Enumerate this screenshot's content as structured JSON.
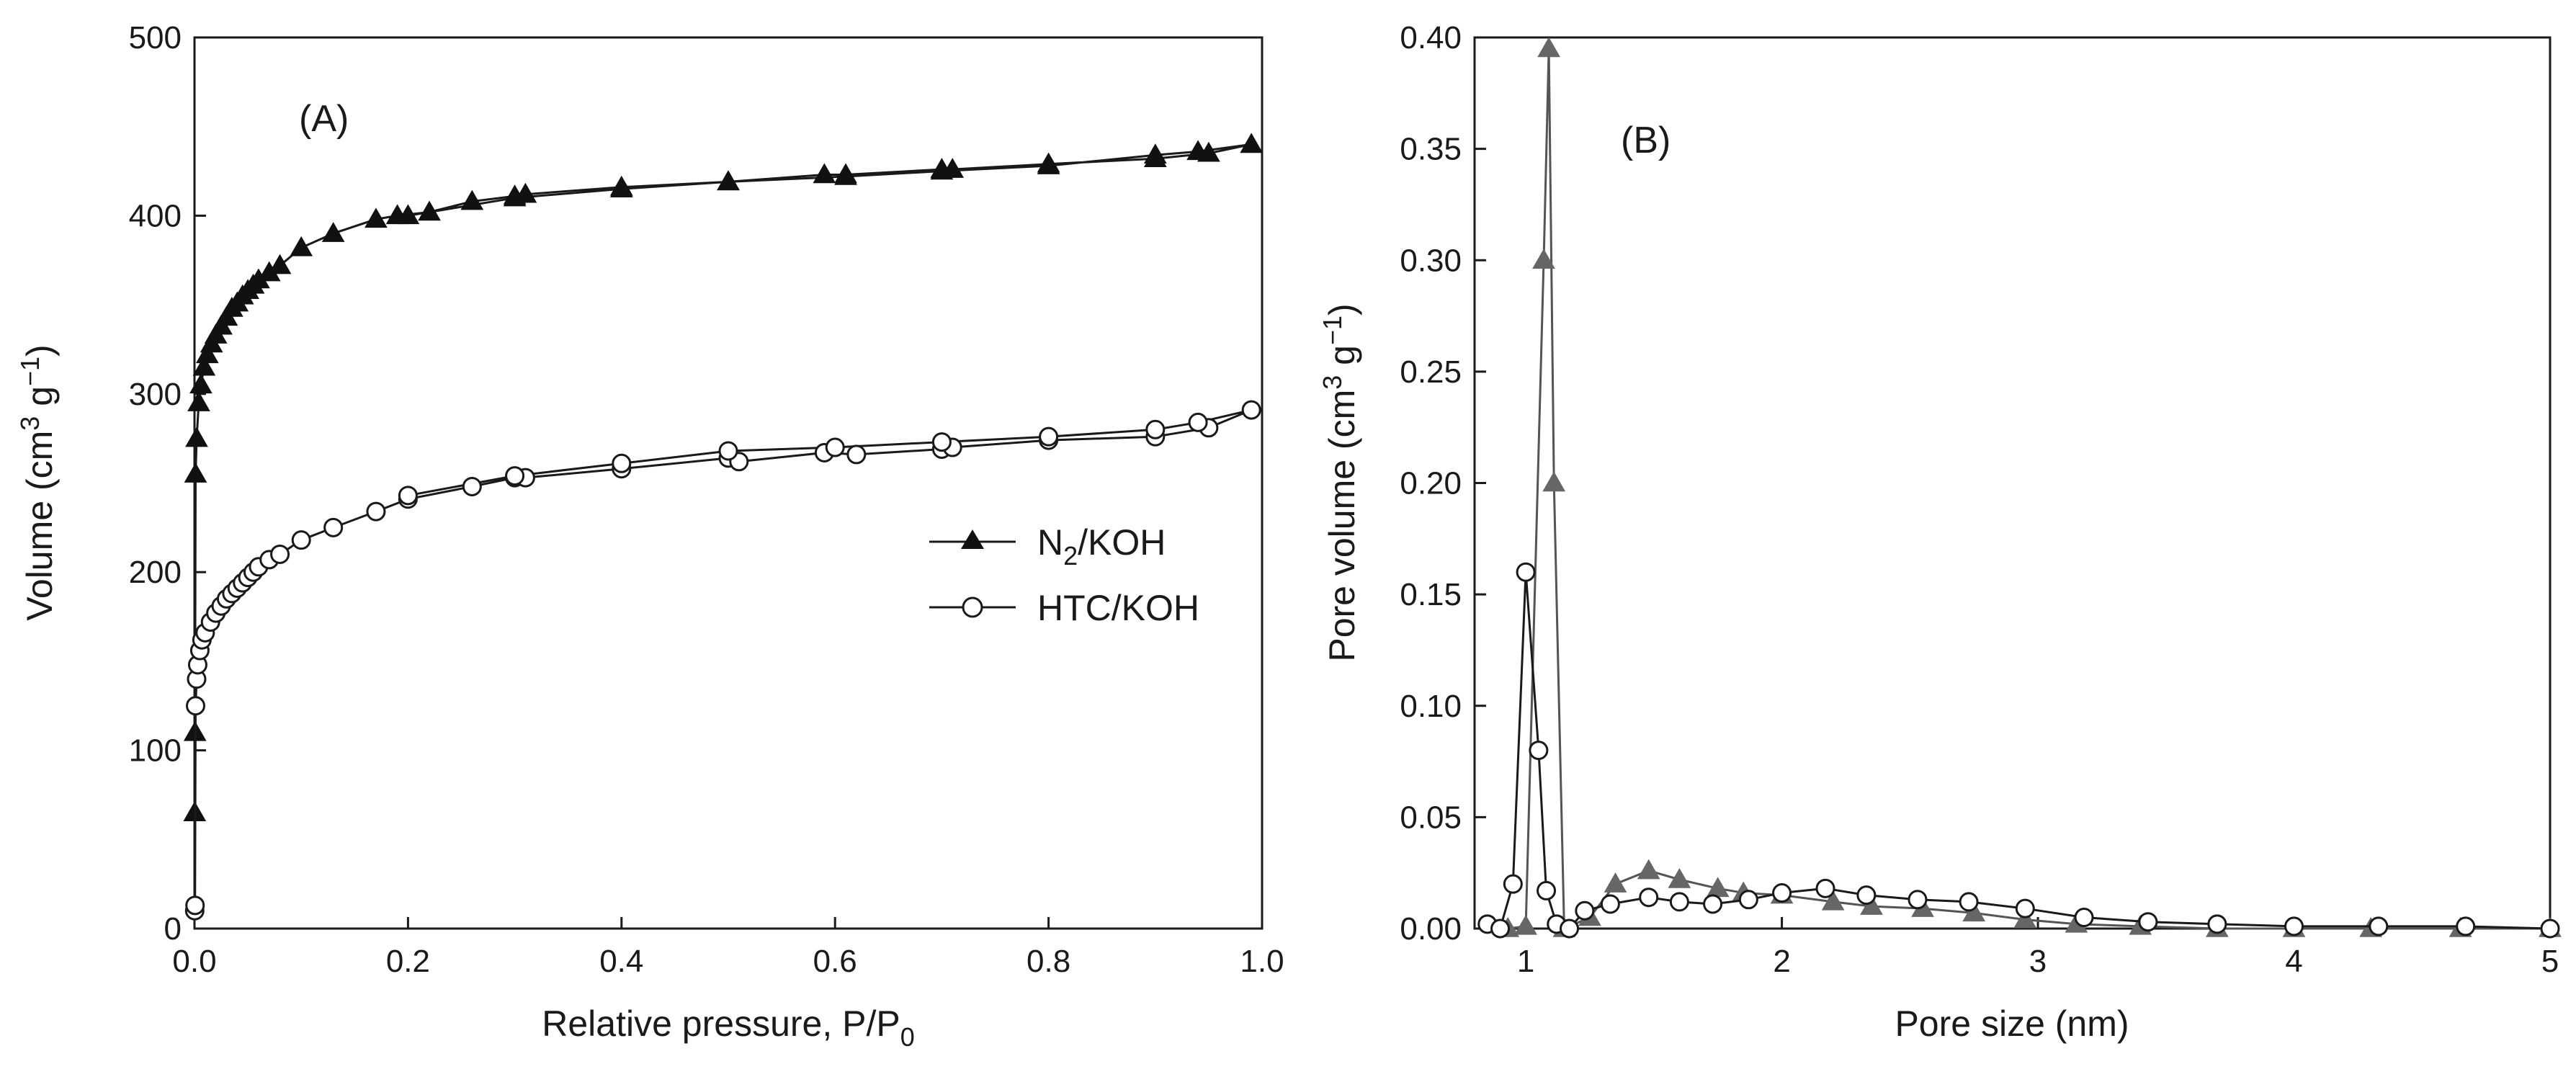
{
  "chart_data": [
    {
      "id": "A",
      "type": "line",
      "panel_label": "(A)",
      "xlabel_main": "Relative pressure, P/P",
      "xlabel_sub": "0",
      "ylabel_main": "Volume (cm",
      "ylabel_sup1": "3",
      "ylabel_mid": " g",
      "ylabel_sup2": "−1",
      "ylabel_end": ")",
      "xlim": [
        0,
        1.0
      ],
      "ylim": [
        0,
        500
      ],
      "xticks": [
        "0.0",
        "0.2",
        "0.4",
        "0.6",
        "0.8",
        "1.0"
      ],
      "yticks": [
        "0",
        "100",
        "200",
        "300",
        "400",
        "500"
      ],
      "legend_position": "center-right",
      "series": [
        {
          "name": "N2/KOH",
          "legend_main": "N",
          "legend_sub": "2",
          "legend_end": "/KOH",
          "marker": "filled-triangle",
          "x": [
            0.0002,
            0.0005,
            0.001,
            0.002,
            0.004,
            0.006,
            0.009,
            0.012,
            0.016,
            0.02,
            0.025,
            0.03,
            0.035,
            0.04,
            0.045,
            0.05,
            0.055,
            0.06,
            0.07,
            0.08,
            0.1,
            0.13,
            0.17,
            0.19,
            0.22,
            0.26,
            0.3,
            0.31,
            0.4,
            0.5,
            0.59,
            0.61,
            0.7,
            0.71,
            0.8,
            0.9,
            0.95,
            0.99,
            0.94,
            0.9,
            0.8,
            0.7,
            0.61,
            0.5,
            0.4,
            0.3,
            0.2
          ],
          "y": [
            65,
            110,
            255,
            275,
            295,
            305,
            315,
            322,
            328,
            333,
            338,
            343,
            348,
            351,
            355,
            358,
            361,
            364,
            368,
            372,
            382,
            390,
            398,
            400,
            402,
            408,
            411,
            412,
            416,
            419,
            423,
            423,
            426,
            426,
            429,
            432,
            435,
            440,
            436,
            434,
            428,
            425,
            422,
            419,
            415,
            410,
            400
          ]
        },
        {
          "name": "HTC/KOH",
          "legend_main": "HTC/KOH",
          "legend_sub": "",
          "legend_end": "",
          "marker": "open-circle",
          "x": [
            0.0002,
            0.0005,
            0.001,
            0.002,
            0.003,
            0.005,
            0.007,
            0.01,
            0.015,
            0.02,
            0.025,
            0.03,
            0.035,
            0.04,
            0.045,
            0.05,
            0.055,
            0.06,
            0.07,
            0.08,
            0.1,
            0.13,
            0.17,
            0.2,
            0.26,
            0.3,
            0.31,
            0.4,
            0.5,
            0.51,
            0.59,
            0.62,
            0.7,
            0.71,
            0.8,
            0.9,
            0.95,
            0.99,
            0.94,
            0.9,
            0.8,
            0.7,
            0.6,
            0.5,
            0.4,
            0.3,
            0.2
          ],
          "y": [
            10,
            13,
            125,
            140,
            148,
            156,
            162,
            166,
            172,
            177,
            181,
            185,
            188,
            191,
            194,
            197,
            200,
            203,
            207,
            210,
            218,
            225,
            234,
            241,
            248,
            253,
            253,
            258,
            264,
            262,
            267,
            266,
            269,
            270,
            274,
            276,
            281,
            291,
            284,
            280,
            276,
            273,
            270,
            268,
            261,
            254,
            243
          ]
        }
      ]
    },
    {
      "id": "B",
      "type": "line",
      "panel_label": "(B)",
      "xlabel_main": "Pore size (nm)",
      "ylabel_main": "Pore volume (cm",
      "ylabel_sup1": "3",
      "ylabel_mid": " g",
      "ylabel_sup2": "−1",
      "ylabel_end": ")",
      "xlim": [
        0.8,
        5
      ],
      "ylim": [
        0,
        0.4
      ],
      "xticks": [
        "1",
        "2",
        "3",
        "4",
        "5"
      ],
      "xtick_values": [
        1,
        2,
        3,
        4,
        5
      ],
      "yticks": [
        "0.00",
        "0.05",
        "0.10",
        "0.15",
        "0.20",
        "0.25",
        "0.30",
        "0.35",
        "0.40"
      ],
      "series": [
        {
          "name": "N2/KOH",
          "marker": "filled-triangle-gray",
          "x": [
            0.93,
            1.0,
            1.07,
            1.09,
            1.11,
            1.15,
            1.25,
            1.35,
            1.48,
            1.6,
            1.75,
            1.85,
            2.0,
            2.2,
            2.35,
            2.55,
            2.75,
            2.95,
            3.15,
            3.4,
            3.7,
            4.0,
            4.3,
            4.65,
            5.0
          ],
          "y": [
            0.0,
            0.001,
            0.3,
            0.395,
            0.2,
            0.0,
            0.005,
            0.02,
            0.026,
            0.022,
            0.018,
            0.016,
            0.015,
            0.012,
            0.01,
            0.009,
            0.007,
            0.004,
            0.002,
            0.001,
            0.0,
            0.0,
            0.0,
            0.0,
            0.0
          ]
        },
        {
          "name": "HTC/KOH",
          "marker": "open-circle",
          "x": [
            0.85,
            0.9,
            0.95,
            1.0,
            1.05,
            1.08,
            1.12,
            1.17,
            1.23,
            1.33,
            1.48,
            1.6,
            1.73,
            1.87,
            2.0,
            2.17,
            2.33,
            2.53,
            2.73,
            2.95,
            3.18,
            3.43,
            3.7,
            4.0,
            4.33,
            4.67,
            5.0
          ],
          "y": [
            0.002,
            0.0,
            0.02,
            0.16,
            0.08,
            0.017,
            0.002,
            0.0,
            0.008,
            0.011,
            0.014,
            0.012,
            0.011,
            0.013,
            0.016,
            0.018,
            0.015,
            0.013,
            0.012,
            0.009,
            0.005,
            0.003,
            0.002,
            0.001,
            0.001,
            0.001,
            0.0
          ]
        }
      ]
    }
  ]
}
